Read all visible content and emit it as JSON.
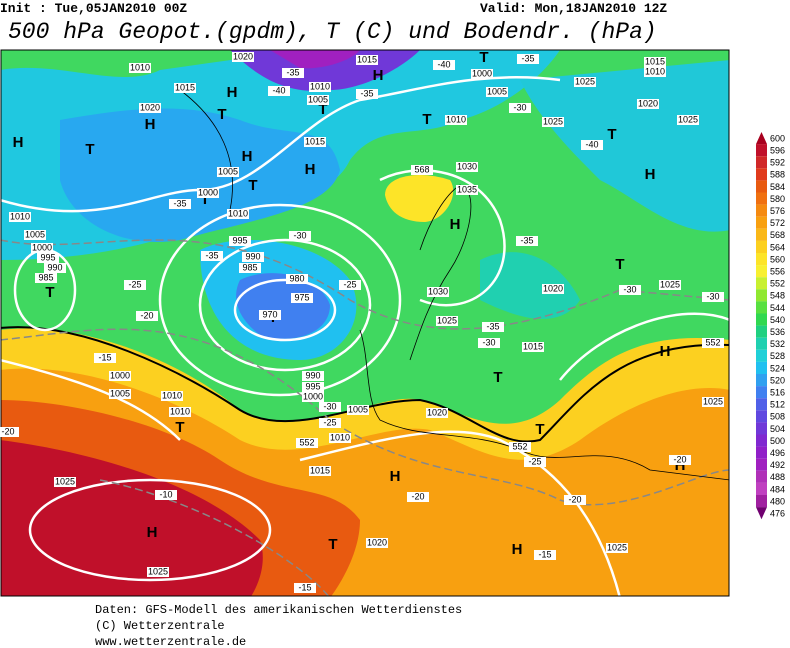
{
  "header": {
    "init": "Init : Tue,05JAN2010 00Z",
    "valid": "Valid: Mon,18JAN2010 12Z",
    "title": "500 hPa Geopot.(gpdm), T (C) und Bodendr. (hPa)"
  },
  "colorbar": {
    "labels": [
      "600",
      "596",
      "592",
      "588",
      "584",
      "580",
      "576",
      "572",
      "568",
      "564",
      "560",
      "556",
      "552",
      "548",
      "544",
      "540",
      "536",
      "532",
      "528",
      "524",
      "520",
      "516",
      "512",
      "508",
      "504",
      "500",
      "496",
      "492",
      "488",
      "484",
      "480",
      "476"
    ],
    "colors": [
      "#a8001e",
      "#c0102a",
      "#d02828",
      "#e03a1c",
      "#e85a10",
      "#f07010",
      "#f58a10",
      "#f8a010",
      "#fab818",
      "#fcd020",
      "#fde428",
      "#f8f030",
      "#c8f030",
      "#90e830",
      "#58e040",
      "#30d850",
      "#20d080",
      "#20d0b0",
      "#20d0d8",
      "#20c0f0",
      "#30a0f0",
      "#4080f0",
      "#5060e8",
      "#6048e0",
      "#7038d8",
      "#8028d0",
      "#9020c8",
      "#a020c0",
      "#b030b8",
      "#c040c0",
      "#a020a0",
      "#700070"
    ]
  },
  "map": {
    "pressure_centers": [
      "H",
      "T",
      "H",
      "H",
      "T",
      "H",
      "T",
      "T",
      "H",
      "T",
      "H",
      "T",
      "T",
      "H",
      "H",
      "T",
      "T",
      "H",
      "T",
      "T",
      "T",
      "H",
      "H",
      "T",
      "H",
      "H",
      "T",
      "T"
    ],
    "isobar_labels": [
      "1010",
      "1015",
      "1020",
      "1020",
      "1015",
      "1010",
      "1005",
      "1015",
      "1005",
      "1000",
      "1010",
      "995",
      "990",
      "985",
      "980",
      "975",
      "970",
      "1010",
      "1005",
      "1000",
      "995",
      "990",
      "985",
      "1000",
      "1005",
      "1010",
      "1025",
      "1025",
      "1030",
      "1035",
      "1030",
      "1025",
      "1020",
      "1025",
      "1015",
      "1000",
      "1005",
      "1010",
      "1010",
      "990",
      "995",
      "1000",
      "1005",
      "1010",
      "1015",
      "1020",
      "1020",
      "1025",
      "1025",
      "1025",
      "1025",
      "1025",
      "1010",
      "1015",
      "1020"
    ],
    "temperature_labels": [
      "-35",
      "-40",
      "-35",
      "-40",
      "-35",
      "-30",
      "-40",
      "-35",
      "-35",
      "-30",
      "-25",
      "-25",
      "-20",
      "-35",
      "-30",
      "-30",
      "-35",
      "-30",
      "-15",
      "-20",
      "-10",
      "-30",
      "-25",
      "-20",
      "-25",
      "-20",
      "-20",
      "-15",
      "-15"
    ],
    "contour_labels": [
      "552",
      "552",
      "552",
      "568"
    ]
  },
  "footer": {
    "lines": [
      "Daten: GFS-Modell des amerikanischen Wetterdienstes",
      "(C) Wetterzentrale",
      "www.wetterzentrale.de"
    ]
  }
}
